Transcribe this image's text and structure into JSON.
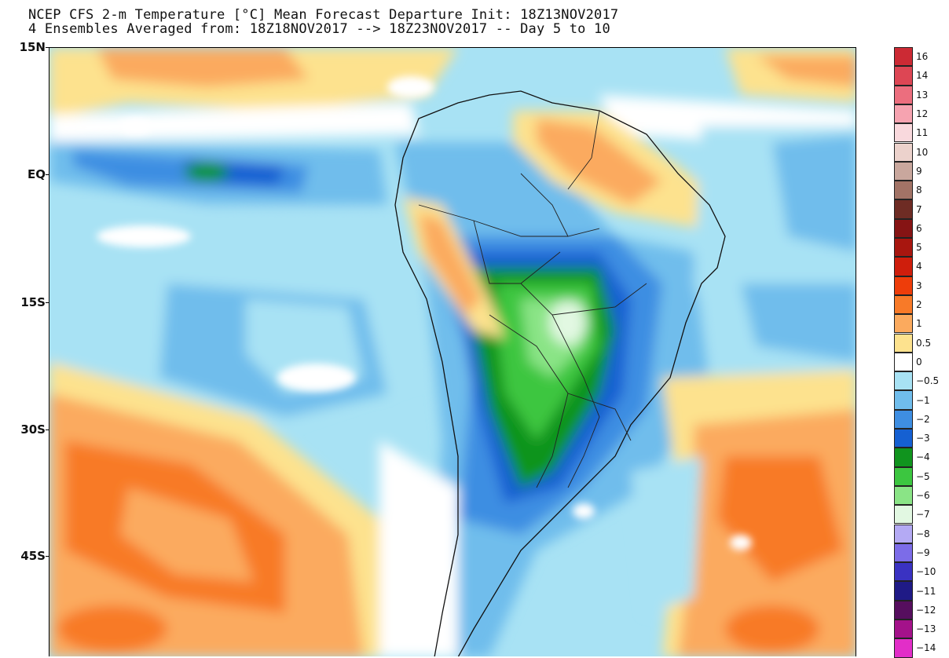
{
  "title": {
    "line1": "NCEP CFS 2-m Temperature [°C] Mean Forecast Departure Init: 18Z13NOV2017",
    "line2": "4 Ensembles Averaged from: 18Z18NOV2017 --> 18Z23NOV2017 -- Day 5 to 10"
  },
  "map": {
    "latitude_labels": [
      "15N",
      "EQ",
      "15S",
      "30S",
      "45S"
    ],
    "region": "South America"
  },
  "colorbar": {
    "entries": [
      {
        "label": "16",
        "color": "#cc2a34"
      },
      {
        "label": "14",
        "color": "#dd4654"
      },
      {
        "label": "13",
        "color": "#ec6e7e"
      },
      {
        "label": "12",
        "color": "#f6a3b0"
      },
      {
        "label": "11",
        "color": "#f9d9dd"
      },
      {
        "label": "10",
        "color": "#ecd2cc"
      },
      {
        "label": "9",
        "color": "#c9a79d"
      },
      {
        "label": "8",
        "color": "#a27366"
      },
      {
        "label": "7",
        "color": "#6e2c24"
      },
      {
        "label": "6",
        "color": "#861414"
      },
      {
        "label": "5",
        "color": "#a8160f"
      },
      {
        "label": "4",
        "color": "#cf1e0c"
      },
      {
        "label": "3",
        "color": "#ee3d0a"
      },
      {
        "label": "2",
        "color": "#f87a28"
      },
      {
        "label": "1",
        "color": "#fbaa5e"
      },
      {
        "label": "0.5",
        "color": "#fde28e"
      },
      {
        "label": "0",
        "color": "#ffffff"
      },
      {
        "label": "−0.5",
        "color": "#a8e2f4"
      },
      {
        "label": "−1",
        "color": "#70bdec"
      },
      {
        "label": "−2",
        "color": "#3e8ee2"
      },
      {
        "label": "−3",
        "color": "#1560d2"
      },
      {
        "label": "−4",
        "color": "#10941e"
      },
      {
        "label": "−5",
        "color": "#3cc640"
      },
      {
        "label": "−6",
        "color": "#8ae486"
      },
      {
        "label": "−7",
        "color": "#e2f8e2"
      },
      {
        "label": "−8",
        "color": "#b4aaf4"
      },
      {
        "label": "−9",
        "color": "#7c6ce8"
      },
      {
        "label": "−10",
        "color": "#3a32c2"
      },
      {
        "label": "−11",
        "color": "#1f1a86"
      },
      {
        "label": "−12",
        "color": "#560e5e"
      },
      {
        "label": "−13",
        "color": "#a4128a"
      },
      {
        "label": "−14",
        "color": "#e22ec8"
      }
    ]
  }
}
